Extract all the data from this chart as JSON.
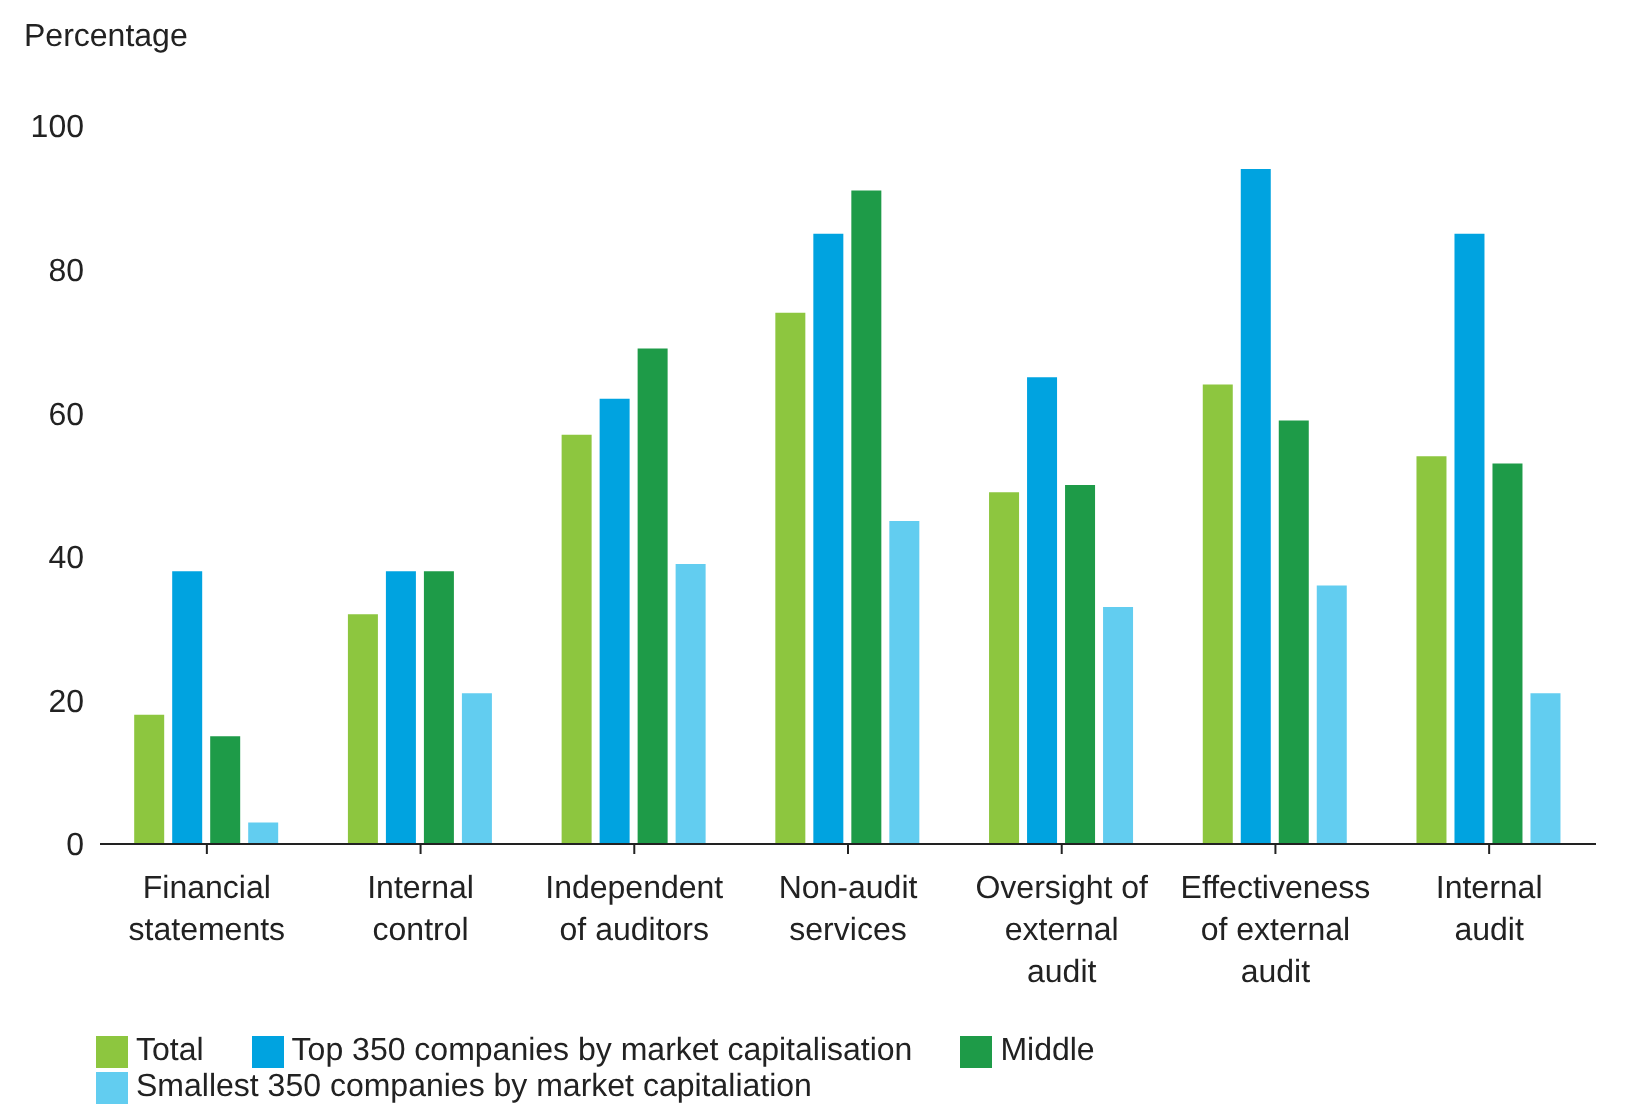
{
  "chart_data": {
    "type": "bar",
    "ylabel": "Percentage",
    "categories": [
      "Financial statements",
      "Internal control",
      "Independent of auditors",
      "Non-audit services",
      "Oversight of external audit",
      "Effectiveness of external audit",
      "Internal audit"
    ],
    "series": [
      {
        "name": "Total",
        "color": "#8dc63f",
        "values": [
          18,
          32,
          57,
          74,
          49,
          64,
          54
        ]
      },
      {
        "name": "Top 350 companies by market capitalisation",
        "color": "#00a3e0",
        "values": [
          38,
          38,
          62,
          85,
          65,
          94,
          85
        ]
      },
      {
        "name": "Middle",
        "color": "#1e9b48",
        "values": [
          15,
          38,
          69,
          91,
          50,
          59,
          53
        ]
      },
      {
        "name": "Smallest 350 companies by market capitaliation",
        "color": "#62cdf0",
        "values": [
          3,
          21,
          39,
          45,
          33,
          36,
          21
        ]
      }
    ],
    "ylim": [
      0,
      100
    ],
    "yticks": [
      0,
      20,
      40,
      60,
      80,
      100
    ],
    "legend": "bottom"
  }
}
